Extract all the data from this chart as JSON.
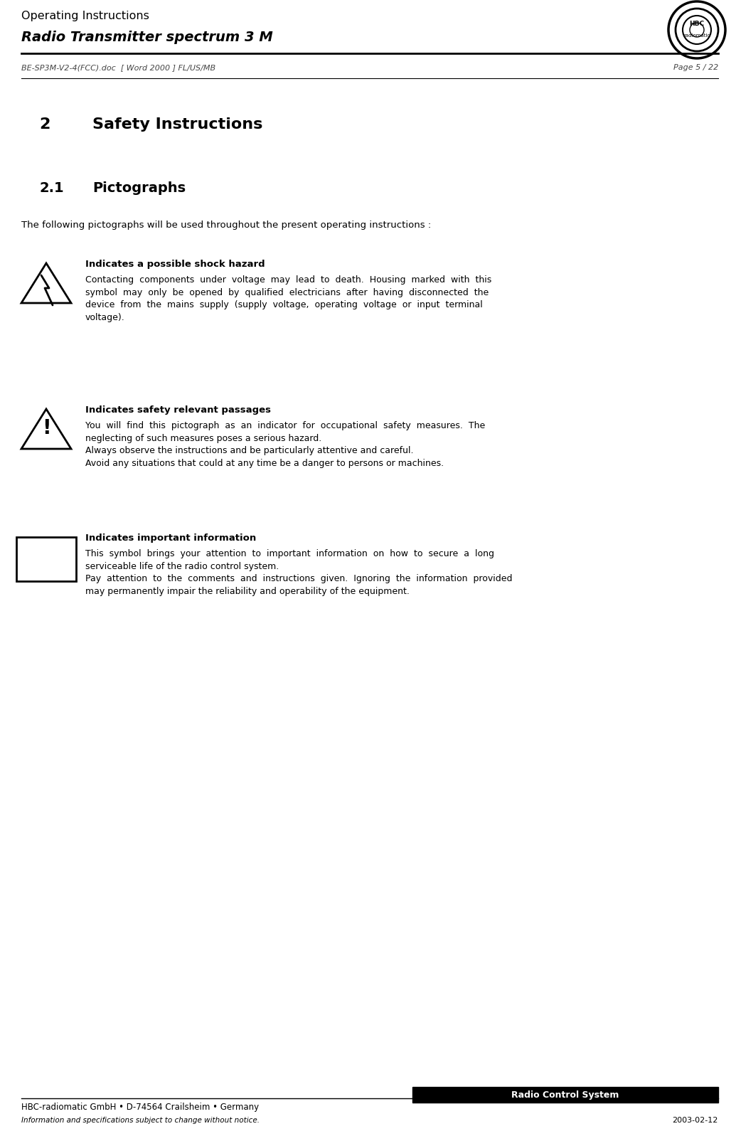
{
  "page_width": 10.35,
  "page_height": 16.04,
  "bg_color": "#ffffff",
  "header_line1": "Operating Instructions",
  "header_line2": "Radio Transmitter spectrum 3 M",
  "subheader": "BE-SP3M-V2-4(FCC).doc  [ Word 2000 ] FL/US/MB",
  "page_num": "Page 5 / 22",
  "section_num": "2",
  "section_name": "Safety Instructions",
  "subsection_num": "2.1",
  "subsection_name": "Pictographs",
  "intro_text": "The following pictographs will be used throughout the present operating instructions :",
  "pictograph1_title": "Indicates a possible shock hazard",
  "pictograph1_body_lines": [
    "Contacting  components  under  voltage  may  lead  to  death.  Housing  marked  with  this",
    "symbol  may  only  be  opened  by  qualified  electricians  after  having  disconnected  the",
    "device  from  the  mains  supply  (supply  voltage,  operating  voltage  or  input  terminal",
    "voltage)."
  ],
  "pictograph2_title": "Indicates safety relevant passages",
  "pictograph2_body_lines": [
    "You  will  find  this  pictograph  as  an  indicator  for  occupational  safety  measures.  The",
    "neglecting of such measures poses a serious hazard.",
    "Always observe the instructions and be particularly attentive and careful.",
    "Avoid any situations that could at any time be a danger to persons or machines."
  ],
  "pictograph3_title": "Indicates important information",
  "pictograph3_body_lines": [
    "This  symbol  brings  your  attention  to  important  information  on  how  to  secure  a  long",
    "serviceable life of the radio control system.",
    "Pay  attention  to  the  comments  and  instructions  given.  Ignoring  the  information  provided",
    "may permanently impair the reliability and operability of the equipment."
  ],
  "footer_left1": "HBC-radiomatic GmbH • D-74564 Crailsheim • Germany",
  "footer_left2": "Information and specifications subject to change without notice.",
  "footer_right_box": "Radio Control System",
  "footer_date": "2003-02-12",
  "footer_bg": "#000000",
  "footer_text_color": "#ffffff",
  "main_text_color": "#000000",
  "header_color": "#000000",
  "subheader_color": "#444444"
}
